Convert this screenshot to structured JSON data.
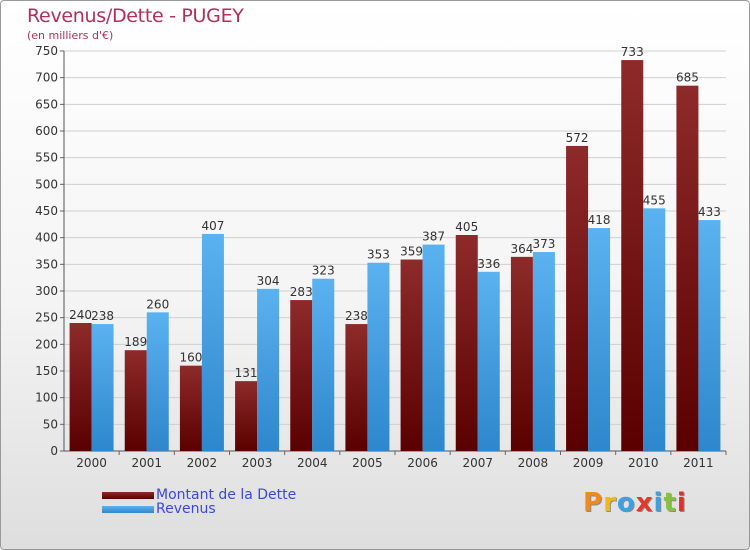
{
  "title": "Revenus/Dette - PUGEY",
  "subtitle": "(en milliers d'€)",
  "legend": {
    "dette_label": "Montant de la Dette",
    "revenus_label": "Revenus"
  },
  "logo": {
    "text": "Proxiti"
  },
  "colors": {
    "dette": "#7a1818",
    "revenus": "#4aa6e8",
    "title": "#b0305a",
    "legend_text": "#3b49d8",
    "logo_letters": [
      "#f08a1c",
      "#f0b81c",
      "#3ea0e0",
      "#e03a2a",
      "#3ea0e0",
      "#88c040",
      "#e0302a"
    ]
  },
  "chart_data": {
    "type": "bar",
    "categories": [
      "2000",
      "2001",
      "2002",
      "2003",
      "2004",
      "2005",
      "2006",
      "2007",
      "2008",
      "2009",
      "2010",
      "2011"
    ],
    "series": [
      {
        "name": "Montant de la Dette",
        "values": [
          240,
          189,
          160,
          131,
          283,
          238,
          359,
          405,
          364,
          572,
          733,
          685
        ]
      },
      {
        "name": "Revenus",
        "values": [
          238,
          260,
          407,
          304,
          323,
          353,
          387,
          336,
          373,
          418,
          455,
          433
        ]
      }
    ],
    "ylim": [
      0,
      750
    ],
    "yticks": [
      0,
      50,
      100,
      150,
      200,
      250,
      300,
      350,
      400,
      450,
      500,
      550,
      600,
      650,
      700,
      750
    ],
    "grid": true
  }
}
